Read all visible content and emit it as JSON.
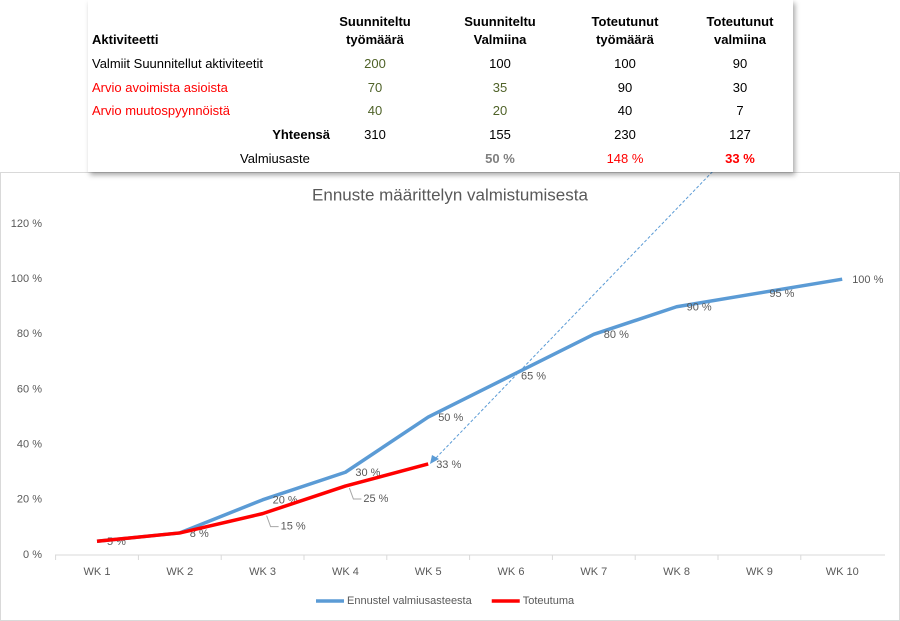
{
  "table": {
    "header": [
      "Aktiviteetti",
      "Suunniteltu työmäärä",
      "Suunniteltu Valmiina",
      "Toteutunut työmäärä",
      "Toteutunut valmiina"
    ],
    "rows": [
      [
        "Valmiit Suunnitellut aktiviteetit",
        "200",
        "100",
        "100",
        "90"
      ],
      [
        "Arvio avoimista asioista",
        "70",
        "35",
        "90",
        "30"
      ],
      [
        "Arvio muutospyynnöistä",
        "40",
        "20",
        "40",
        "7"
      ],
      [
        "Yhteensä",
        "310",
        "155",
        "230",
        "127"
      ],
      [
        "Valmiusaste",
        null,
        "50 %",
        "148 %",
        "33 %"
      ]
    ]
  },
  "chart_data": {
    "type": "line",
    "title": "Ennuste määrittelyn valmistumisesta",
    "categories": [
      "WK 1",
      "WK 2",
      "WK 3",
      "WK 4",
      "WK 5",
      "WK 6",
      "WK 7",
      "WK 8",
      "WK 9",
      "WK 10"
    ],
    "series": [
      {
        "name": "Ennustel valmiusasteesta",
        "color": "#5b9bd5",
        "values": [
          5,
          8,
          20,
          30,
          50,
          65,
          80,
          90,
          95,
          100
        ],
        "value_labels": [
          "5 %",
          "8 %",
          "20 %",
          "30 %",
          "50 %",
          "65 %",
          "80 %",
          "90 %",
          "95 %",
          "100 %"
        ]
      },
      {
        "name": "Toteutuma",
        "color": "#ff0000",
        "values": [
          5,
          8,
          15,
          25,
          33,
          null,
          null,
          null,
          null,
          null
        ],
        "value_labels": [
          null,
          null,
          "15 %",
          "25 %",
          "33 %",
          null,
          null,
          null,
          null,
          null
        ]
      }
    ],
    "ylim": [
      0,
      120
    ],
    "yticks": [
      {
        "value": 0,
        "label": "0 %"
      },
      {
        "value": 20,
        "label": "20 %"
      },
      {
        "value": 40,
        "label": "40 %"
      },
      {
        "value": 60,
        "label": "60 %"
      },
      {
        "value": 80,
        "label": "80 %"
      },
      {
        "value": 100,
        "label": "100 %"
      },
      {
        "value": 120,
        "label": "120 %"
      }
    ],
    "grid": false,
    "legend": "bottom"
  }
}
